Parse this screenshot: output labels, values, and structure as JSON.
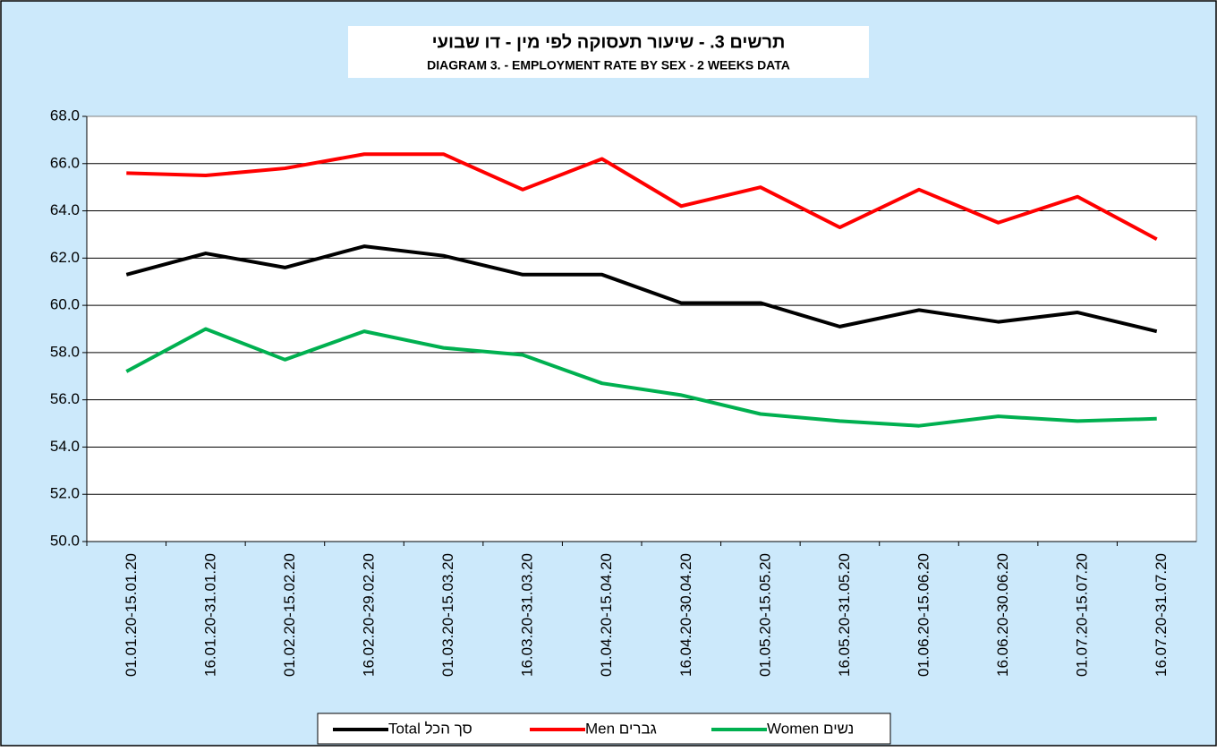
{
  "chart_data": {
    "type": "line",
    "title": "תרשים 3. - שיעור תעסוקה לפי מין - דו שבועי",
    "subtitle": "DIAGRAM 3. - EMPLOYMENT RATE BY SEX - 2 WEEKS DATA",
    "categories": [
      "01.01.20-15.01.20",
      "16.01.20-31.01.20",
      "01.02.20-15.02.20",
      "16.02.20-29.02.20",
      "01.03.20-15.03.20",
      "16.03.20-31.03.20",
      "01.04.20-15.04.20",
      "16.04.20-30.04.20",
      "01.05.20-15.05.20",
      "16.05.20-31.05.20",
      "01.06.20-15.06.20",
      "16.06.20-30.06.20",
      "01.07.20-15.07.20",
      "16.07.20-31.07.20"
    ],
    "series": [
      {
        "name": "Total סך הכל",
        "color": "#000000",
        "values": [
          61.3,
          62.2,
          61.6,
          62.5,
          62.1,
          61.3,
          61.3,
          60.1,
          60.1,
          59.1,
          59.8,
          59.3,
          59.7,
          58.9
        ]
      },
      {
        "name": "Men גברים",
        "color": "#ff0000",
        "values": [
          65.6,
          65.5,
          65.8,
          66.4,
          66.4,
          64.9,
          66.2,
          64.2,
          65.0,
          63.3,
          64.9,
          63.5,
          64.6,
          62.8
        ]
      },
      {
        "name": "Women נשים",
        "color": "#00b050",
        "values": [
          57.2,
          59.0,
          57.7,
          58.9,
          58.2,
          57.9,
          56.7,
          56.2,
          55.4,
          55.1,
          54.9,
          55.3,
          55.1,
          55.2
        ]
      }
    ],
    "ylim": [
      50,
      68
    ],
    "yticks": [
      {
        "value": 50,
        "label": "50.0"
      },
      {
        "value": 52,
        "label": "52.0"
      },
      {
        "value": 54,
        "label": "54.0"
      },
      {
        "value": 56,
        "label": "56.0"
      },
      {
        "value": 58,
        "label": "58.0"
      },
      {
        "value": 60,
        "label": "60.0"
      },
      {
        "value": 62,
        "label": "62.0"
      },
      {
        "value": 64,
        "label": "64.0"
      },
      {
        "value": 66,
        "label": "66.0"
      },
      {
        "value": 68,
        "label": "68.0"
      }
    ],
    "grid": true,
    "legend": "bottom"
  }
}
